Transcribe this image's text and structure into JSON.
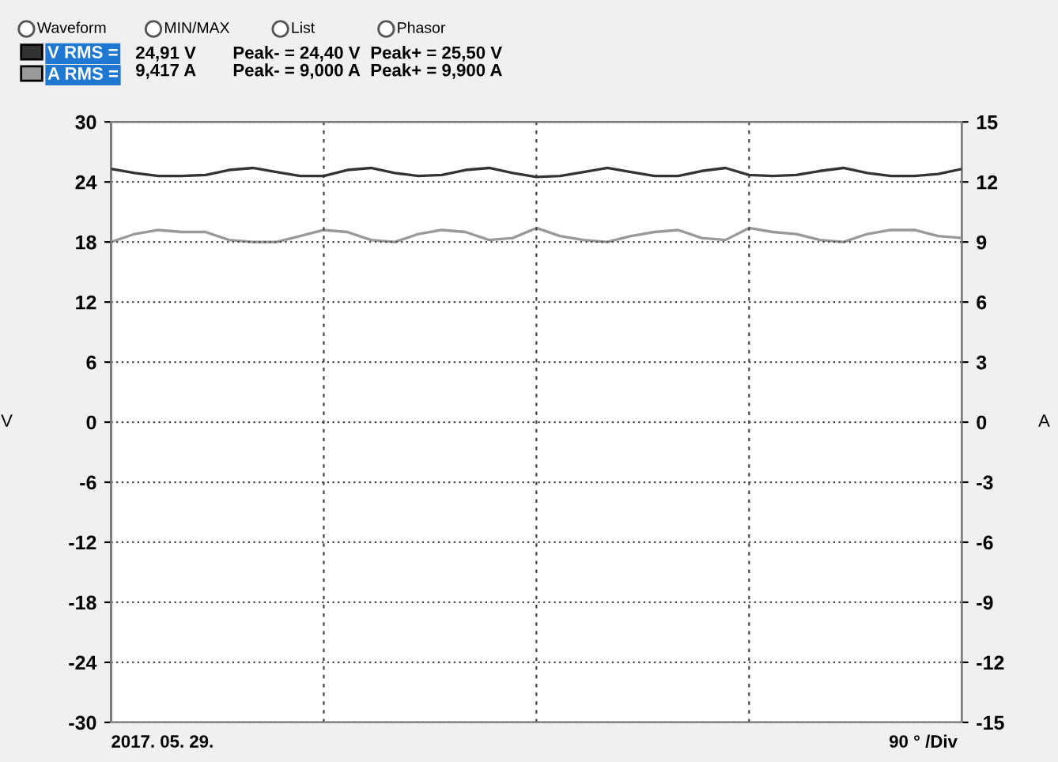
{
  "chart_data": {
    "type": "line",
    "ylabel": "V",
    "y2label": "A",
    "categories": [
      null,
      null,
      null,
      null,
      null,
      null,
      null,
      null,
      null,
      null,
      null,
      null,
      null,
      null,
      null,
      null,
      null,
      null,
      null,
      null,
      null,
      null,
      null,
      null,
      null,
      null,
      null,
      null,
      null,
      null,
      null,
      null,
      null,
      null,
      null,
      null,
      null
    ],
    "series": [
      {
        "name": "V RMS =",
        "color": "#333333",
        "values": [
          25.3,
          24.9,
          24.6,
          24.6,
          24.7,
          25.2,
          25.4,
          25.0,
          24.6,
          24.6,
          25.2,
          25.4,
          24.9,
          24.6,
          24.7,
          25.2,
          25.4,
          24.9,
          24.5,
          24.6,
          25.0,
          25.4,
          25.0,
          24.6,
          24.6,
          25.1,
          25.4,
          24.7,
          24.6,
          24.7,
          25.1,
          25.4,
          24.9,
          24.6,
          24.6,
          24.8,
          25.3
        ]
      },
      {
        "name": "A RMS =",
        "color": "#999999",
        "axis": "y2",
        "values": [
          9.0,
          9.4,
          9.6,
          9.5,
          9.5,
          9.1,
          9.0,
          9.0,
          9.3,
          9.6,
          9.5,
          9.1,
          9.0,
          9.4,
          9.6,
          9.5,
          9.1,
          9.2,
          9.7,
          9.3,
          9.1,
          9.0,
          9.3,
          9.5,
          9.6,
          9.2,
          9.1,
          9.7,
          9.5,
          9.4,
          9.1,
          9.0,
          9.4,
          9.6,
          9.6,
          9.3,
          9.2
        ]
      }
    ],
    "ylim": [
      -30,
      30
    ],
    "yticks": [
      -30,
      -24,
      -18,
      -12,
      -6,
      0,
      6,
      12,
      18,
      24,
      30
    ],
    "y2lim": [
      -15,
      15
    ],
    "y2ticks": [
      -15,
      -12,
      -9,
      -6,
      -3,
      0,
      3,
      6,
      9,
      12,
      15
    ],
    "tick_labels": "y",
    "grid": true,
    "legend": "top left",
    "marker": "none",
    "line_style": "solid",
    "annotations": [
      "Waveform",
      "MIN/MAX",
      "List",
      "Phasor",
      "24,91 V",
      "Peak- = 24,40 V",
      "Peak+ = 25,50 V",
      "9,417 A",
      "Peak- = 9,000 A",
      "Peak+ = 9,900 A",
      "2017. 05. 29.",
      "90 ° /Div"
    ]
  }
}
